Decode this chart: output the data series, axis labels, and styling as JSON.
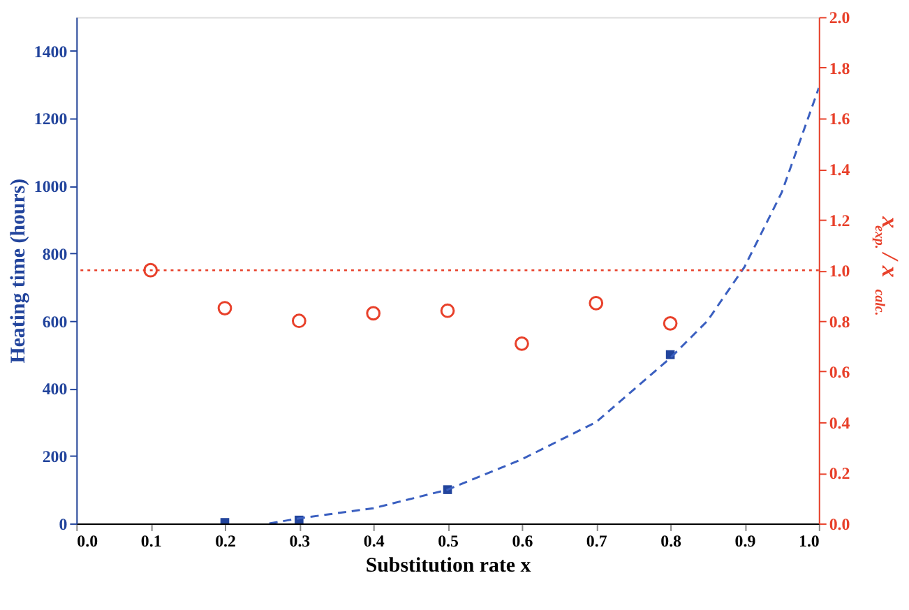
{
  "chart_data": {
    "type": "scatter",
    "xlabel": "Substitution rate x",
    "ylabel": "Heating time (hours)",
    "y2label": "x$_{exp.}$ / x$_{calc.}$",
    "xlim": [
      0,
      1.0
    ],
    "ylim": [
      0,
      1500
    ],
    "y2lim": [
      0,
      2.0
    ],
    "xticks": [
      {
        "value": 0,
        "label": "0.0"
      },
      0.1,
      0.2,
      0.3,
      0.4,
      0.5,
      0.6,
      0.7,
      0.8,
      0.9,
      {
        "value": 1,
        "label": "1.0"
      }
    ],
    "yticks": [
      0,
      200,
      400,
      600,
      800,
      1000,
      1200,
      1400
    ],
    "y2ticks": [
      {
        "value": 0,
        "label": "0.0"
      },
      0.2,
      0.4,
      0.6,
      0.8,
      {
        "value": 1,
        "label": "1.0"
      },
      1.2,
      1.4,
      1.6,
      1.8,
      {
        "value": 2,
        "label": "2.0"
      }
    ],
    "series": [
      {
        "marker": "square",
        "color": "#22449c",
        "x": [
          0.2,
          0.3,
          0.5,
          0.8
        ],
        "values": [
          3,
          10,
          100,
          500
        ]
      },
      {
        "type": "line",
        "marker": "none",
        "line_style": "dashed",
        "color": "#3a5fc0",
        "x": [
          0.26,
          0.3,
          0.4,
          0.5,
          0.6,
          0.7,
          0.8,
          0.85,
          0.9,
          0.95,
          1.0
        ],
        "values": [
          0,
          15,
          45,
          100,
          190,
          300,
          490,
          600,
          760,
          980,
          1290
        ]
      },
      {
        "marker": "circle",
        "axis": "y2",
        "color": "#e8402a",
        "x": [
          0.1,
          0.2,
          0.3,
          0.4,
          0.5,
          0.6,
          0.7,
          0.8
        ],
        "values": [
          1.0,
          0.85,
          0.8,
          0.83,
          0.84,
          0.71,
          0.87,
          0.79
        ]
      }
    ],
    "ref_lines": [
      {
        "axis": "y2",
        "value": 1.0,
        "color": "#e8402a",
        "line_style": "dotted"
      }
    ]
  }
}
